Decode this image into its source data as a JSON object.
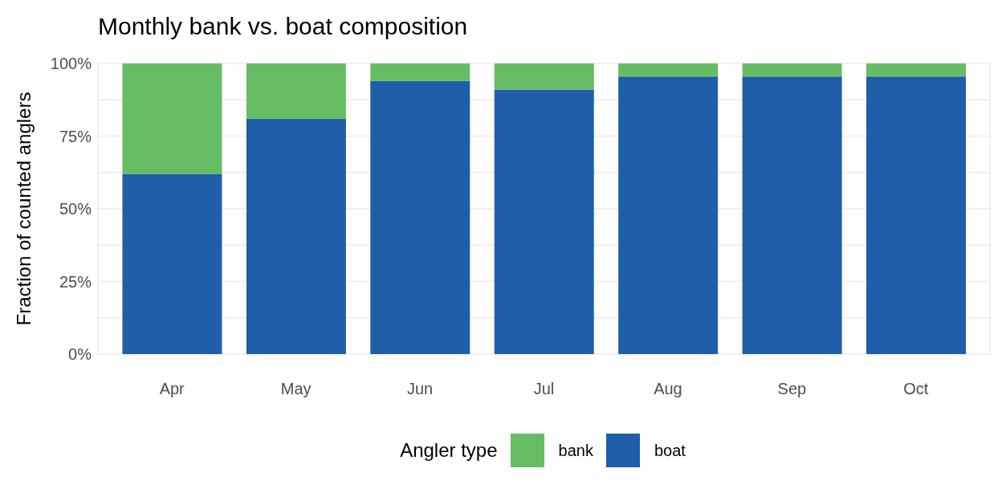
{
  "chart_data": {
    "type": "bar",
    "title": "Monthly bank vs. boat composition",
    "ylabel": "Fraction of counted anglers",
    "legend_title": "Angler type",
    "categories": [
      "Apr",
      "May",
      "Jun",
      "Jul",
      "Aug",
      "Sep",
      "Oct"
    ],
    "series": [
      {
        "name": "boat",
        "color": "#1f5ea8",
        "values": [
          62,
          81,
          94,
          91,
          95.5,
          95.5,
          95.5
        ]
      },
      {
        "name": "bank",
        "color": "#66bd63",
        "values": [
          38,
          19,
          6,
          9,
          4.5,
          4.5,
          4.5
        ]
      }
    ],
    "stacked": true,
    "ylim": [
      0,
      100
    ],
    "yticks": [
      {
        "value": 0,
        "label": "0%"
      },
      {
        "value": 12.5,
        "label": null
      },
      {
        "value": 25,
        "label": "25%"
      },
      {
        "value": 37.5,
        "label": null
      },
      {
        "value": 50,
        "label": "50%"
      },
      {
        "value": 62.5,
        "label": null
      },
      {
        "value": 75,
        "label": "75%"
      },
      {
        "value": 87.5,
        "label": null
      },
      {
        "value": 100,
        "label": "100%"
      }
    ],
    "grid": true,
    "legend": "bottom"
  }
}
